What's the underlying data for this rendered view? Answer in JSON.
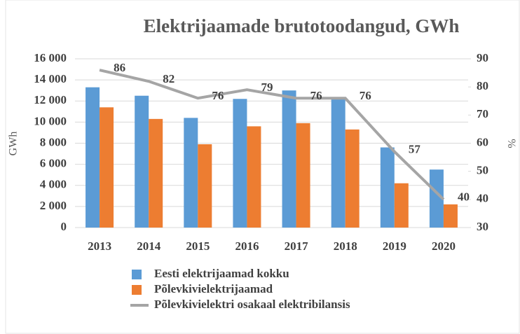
{
  "chart_data": {
    "type": "bar_line",
    "title": "Elektrijaamade brutotoodangud, GWh",
    "y_label": "GWh",
    "y2_label": "%",
    "categories": [
      "2013",
      "2014",
      "2015",
      "2016",
      "2017",
      "2018",
      "2019",
      "2020"
    ],
    "series": [
      {
        "name": "Eesti elektrijaamad kokku",
        "type": "bar",
        "color": "#5b9bd5",
        "values": [
          13300,
          12500,
          10400,
          12200,
          13000,
          12200,
          7600,
          5500
        ]
      },
      {
        "name": "Põlevkivielektrijaamad",
        "type": "bar",
        "color": "#ed7d31",
        "values": [
          11400,
          10300,
          7900,
          9600,
          9900,
          9300,
          4200,
          2200
        ]
      },
      {
        "name": "Põlevkivielektri osakaal elektribilansis",
        "type": "line",
        "axis": "y2",
        "color": "#a5a5a5",
        "values": [
          86,
          82,
          76,
          79,
          76,
          76,
          57,
          40
        ]
      }
    ],
    "ylim": [
      0,
      16000
    ],
    "yticks": [
      0,
      {
        "value": 2000,
        "label": "2 000"
      },
      {
        "value": 4000,
        "label": "4 000"
      },
      {
        "value": 6000,
        "label": "6 000"
      },
      {
        "value": 8000,
        "label": "8 000"
      },
      {
        "value": 10000,
        "label": "10 000"
      },
      {
        "value": 12000,
        "label": "12 000"
      },
      {
        "value": 14000,
        "label": "14 000"
      },
      {
        "value": 16000,
        "label": "16 000"
      }
    ],
    "y2lim": [
      30,
      90
    ],
    "y2ticks": [
      30,
      40,
      50,
      60,
      70,
      80,
      90
    ],
    "grid": true,
    "legend": "bottom"
  }
}
